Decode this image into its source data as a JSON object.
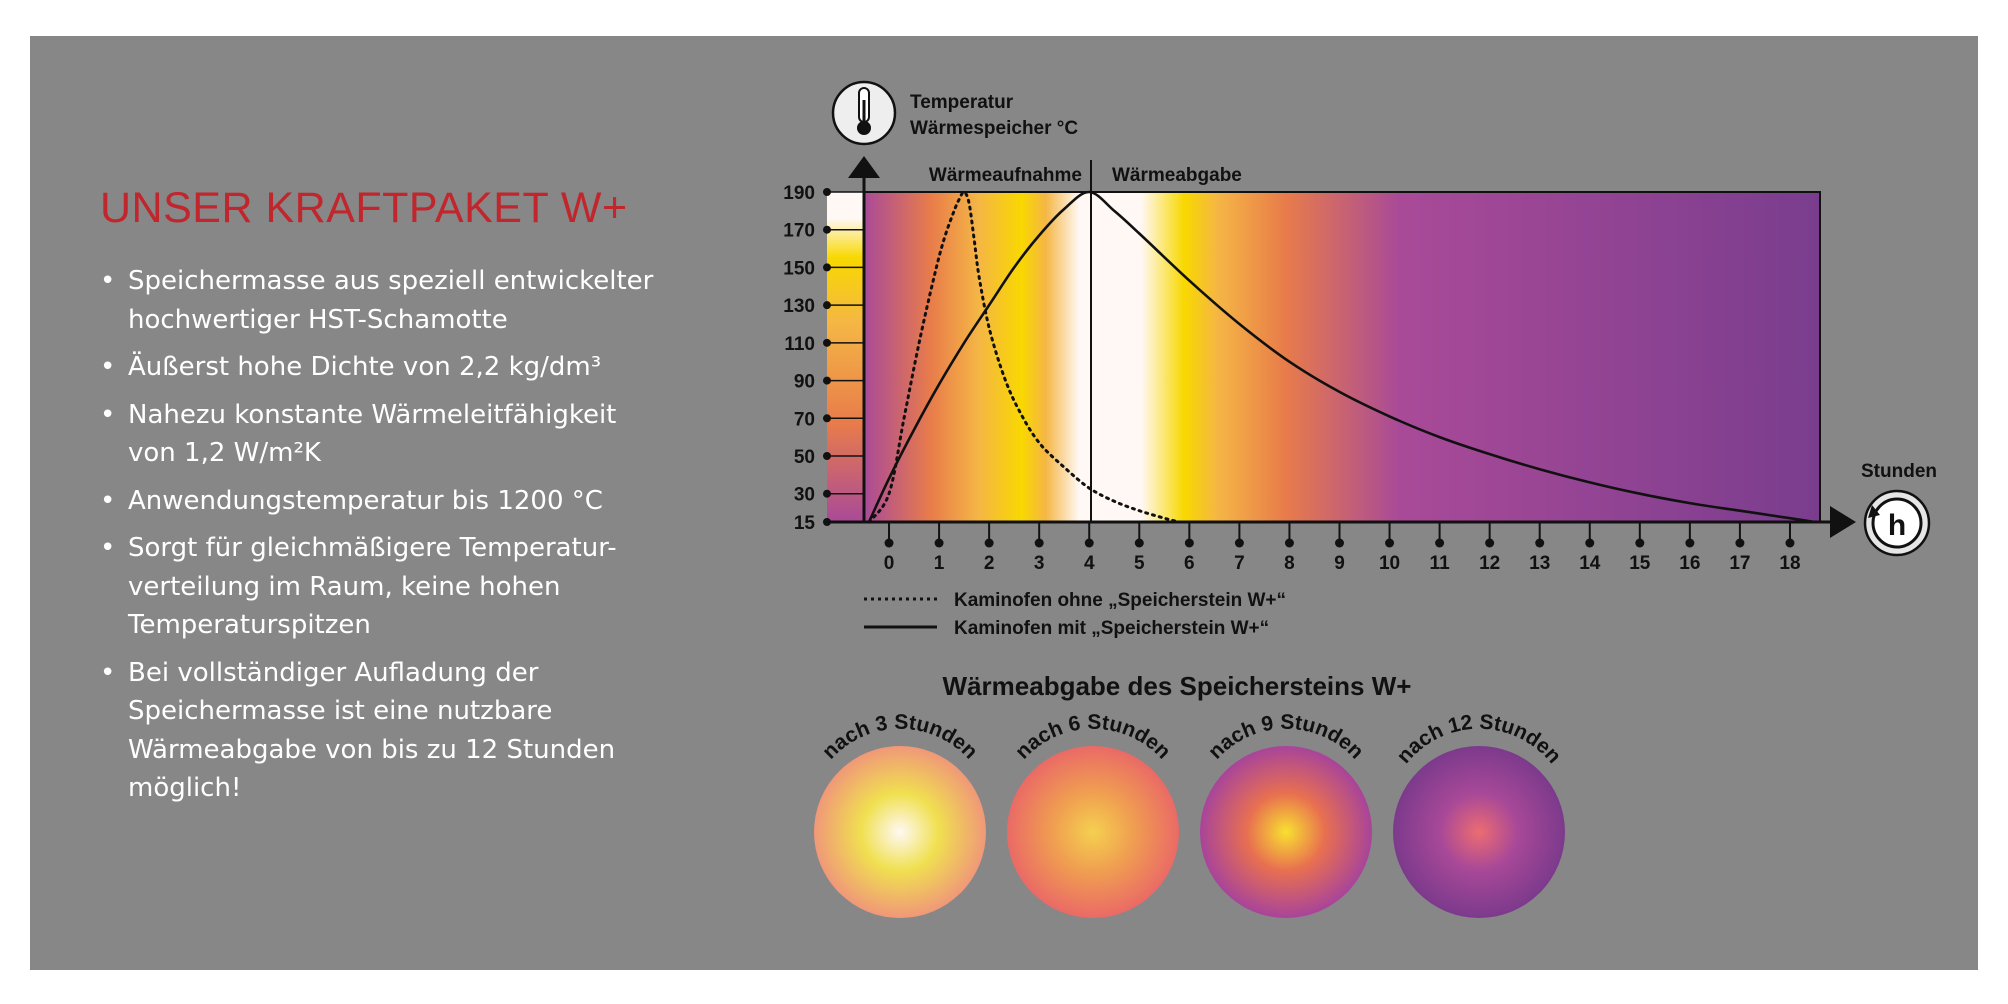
{
  "heading": "UNSER KRAFTPAKET W+",
  "bullets": [
    "Speichermasse aus speziell entwickelter\nhochwertiger HST-Schamotte",
    "Äußerst hohe Dichte von 2,2 kg/dm³",
    "Nahezu konstante Wärmeleitfähigkeit\nvon 1,2 W/m²K",
    "Anwendungstemperatur bis 1200 °C",
    "Sorgt für gleichmäßigere Temperatur-\nverteilung im Raum, keine hohen\nTemperaturspitzen",
    "Bei vollständiger Aufladung der\nSpeichermasse ist eine nutzbare\nWärmeabgabe von bis zu 12 Stunden\nmöglich!"
  ],
  "colors": {
    "background": "#878787",
    "heading": "#c0262c",
    "text": "#ffffff",
    "gradient_stops": [
      "#7a3d8e",
      "#a94a98",
      "#e87c4a",
      "#f5b645",
      "#f8d800",
      "#fff8f4"
    ]
  },
  "icons": {
    "temperature": "thermometer-icon",
    "time": "clock-h-icon",
    "axis_arrows": "arrow-icon"
  },
  "chart_data": {
    "type": "line",
    "ylabel": "Temperatur\nWärmespeicher °C",
    "xlabel": "Stunden",
    "phase_labels": [
      "Wärmeaufnahme",
      "Wärmeabgabe"
    ],
    "phase_divider_x": 4,
    "yticks": [
      15,
      30,
      50,
      70,
      90,
      110,
      130,
      150,
      170,
      190
    ],
    "xticks": [
      0,
      1,
      2,
      3,
      4,
      5,
      6,
      7,
      8,
      9,
      10,
      11,
      12,
      13,
      14,
      15,
      16,
      17,
      18
    ],
    "ylim": [
      15,
      190
    ],
    "xlim": [
      -0.5,
      18.6
    ],
    "series": [
      {
        "name": "Kaminofen ohne „Speicherstein W+“",
        "style": "dotted",
        "x": [
          -0.4,
          0,
          0.3,
          0.6,
          0.9,
          1.1,
          1.3,
          1.4,
          1.5,
          1.6,
          1.7,
          1.8,
          2.0,
          2.3,
          2.6,
          3.0,
          3.5,
          4.0,
          4.5,
          5.0,
          5.5,
          5.8
        ],
        "y": [
          15,
          30,
          70,
          110,
          145,
          165,
          180,
          186,
          190,
          184,
          165,
          145,
          118,
          92,
          74,
          57,
          44,
          33,
          26,
          21,
          17,
          15
        ]
      },
      {
        "name": "Kaminofen mit „Speicherstein W+“",
        "style": "solid",
        "x": [
          -0.4,
          0,
          0.5,
          1,
          1.5,
          2,
          2.5,
          3,
          3.5,
          4,
          4.5,
          5,
          6,
          7,
          8,
          9,
          10,
          11,
          12,
          13,
          14,
          15,
          16,
          17,
          18,
          18.5
        ],
        "y": [
          15,
          38,
          64,
          88,
          110,
          130,
          150,
          167,
          181,
          190,
          180,
          168,
          143,
          120,
          100,
          84,
          71,
          60,
          51,
          43,
          36,
          30,
          25,
          21,
          17,
          15
        ]
      }
    ],
    "legend": [
      {
        "style": "dotted",
        "label": "Kaminofen ohne „Speicherstein W+“"
      },
      {
        "style": "solid",
        "label": "Kaminofen mit „Speicherstein W+“"
      }
    ]
  },
  "heat_section": {
    "title": "Wärmeabgabe des Speichersteins W+",
    "circles": [
      {
        "label": "nach 3 Stunden",
        "stops": [
          "#fff8f4",
          "#f0e050",
          "#f09878"
        ]
      },
      {
        "label": "nach 6 Stunden",
        "stops": [
          "#f5d050",
          "#f0a050",
          "#ea6a66"
        ]
      },
      {
        "label": "nach 9 Stunden",
        "stops": [
          "#f8e030",
          "#e87050",
          "#a8449a"
        ]
      },
      {
        "label": "nach 12 Stunden",
        "stops": [
          "#ec6c72",
          "#a84898",
          "#7c3a8c"
        ]
      }
    ]
  }
}
